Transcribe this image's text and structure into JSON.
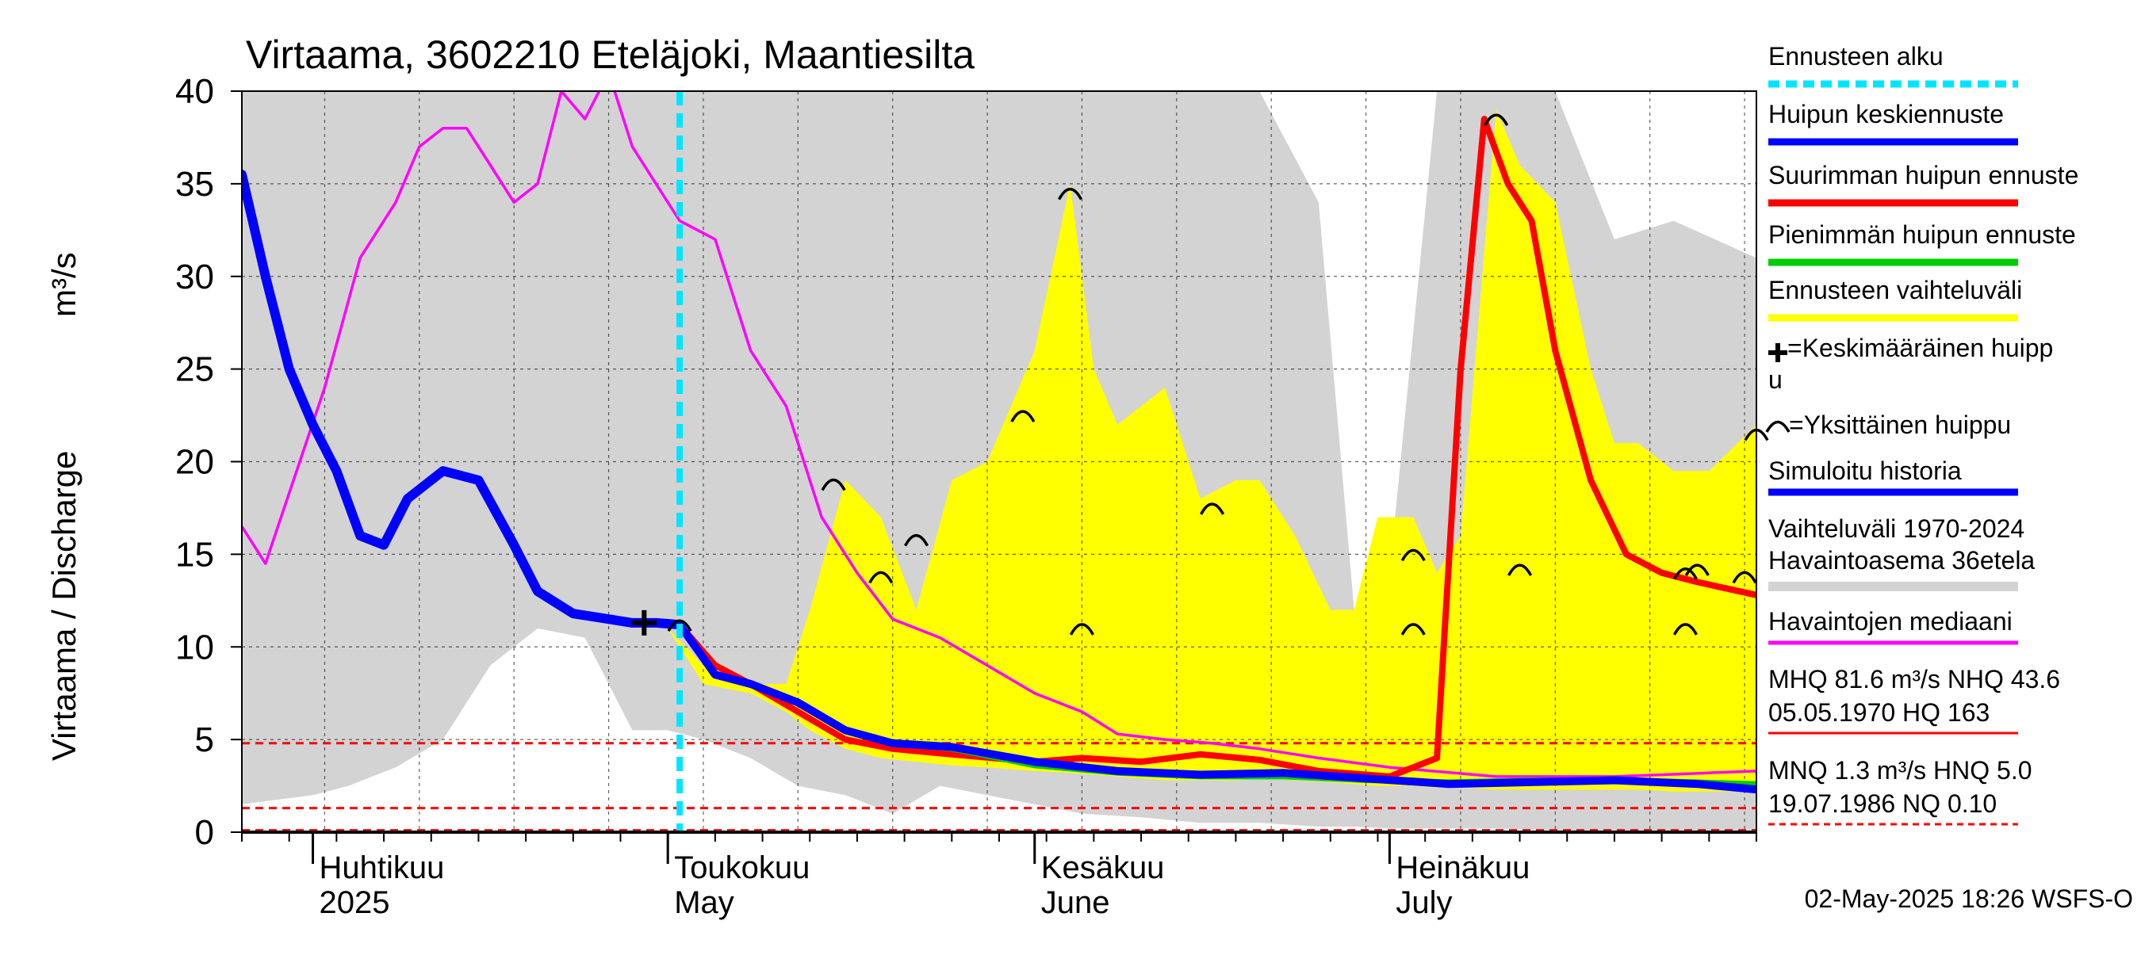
{
  "chart_data": {
    "type": "line",
    "title": "Virtaama, 3602210 Eteläjoki, Maantiesilta",
    "ylabel": "Virtaama / Discharge",
    "yunit": "m³/s",
    "ylim": [
      0,
      40
    ],
    "yticks": [
      "0",
      "5",
      "10",
      "15",
      "20",
      "25",
      "30",
      "35",
      "40"
    ],
    "xlim": [
      "2025-03-26",
      "2025-08-01"
    ],
    "month_labels": [
      {
        "fi": "Huhtikuu",
        "en": "2025",
        "date": "2025-04-01"
      },
      {
        "fi": "Toukokuu",
        "en": "May",
        "date": "2025-05-01"
      },
      {
        "fi": "Kesäkuu",
        "en": "June",
        "date": "2025-06-01"
      },
      {
        "fi": "Heinäkuu",
        "en": "July",
        "date": "2025-07-01"
      }
    ],
    "forecast_start": "2025-05-02",
    "series": [
      {
        "name": "Vaihteluväli 1970-2024 Havaintoasema 36etela",
        "color": "#d3d3d3",
        "kind": "band",
        "x": [
          "2025-03-26",
          "2025-04-01",
          "2025-04-04",
          "2025-04-08",
          "2025-04-12",
          "2025-04-16",
          "2025-04-20",
          "2025-04-24",
          "2025-04-28",
          "2025-05-01",
          "2025-05-04",
          "2025-05-08",
          "2025-05-12",
          "2025-05-16",
          "2025-05-20",
          "2025-05-24",
          "2025-05-28",
          "2025-06-01",
          "2025-06-05",
          "2025-06-10",
          "2025-06-15",
          "2025-06-20",
          "2025-06-25",
          "2025-06-28",
          "2025-07-01",
          "2025-07-05",
          "2025-07-10",
          "2025-07-15",
          "2025-07-20",
          "2025-07-25",
          "2025-08-01"
        ],
        "low": [
          1.5,
          2.0,
          2.5,
          3.5,
          5.0,
          9.0,
          11.0,
          10.5,
          5.5,
          5.5,
          5.0,
          4.0,
          2.5,
          2.0,
          1.0,
          2.5,
          2.0,
          1.5,
          1.0,
          0.8,
          0.5,
          0.5,
          0.3,
          0.3,
          0.2,
          0.2,
          0.2,
          0.1,
          0.1,
          0.1,
          0.1
        ],
        "high": [
          40,
          40,
          40,
          40,
          40,
          40,
          40,
          40,
          40,
          40,
          40,
          40,
          40,
          40,
          40,
          40,
          40,
          40,
          40,
          40,
          40,
          40,
          34,
          12,
          14,
          40,
          40,
          40,
          32,
          33,
          31
        ]
      },
      {
        "name": "Ennusteen vaihteluväli",
        "color": "#ffff00",
        "kind": "band",
        "x": [
          "2025-05-01",
          "2025-05-04",
          "2025-05-08",
          "2025-05-11",
          "2025-05-13",
          "2025-05-16",
          "2025-05-19",
          "2025-05-22",
          "2025-05-25",
          "2025-05-28",
          "2025-06-01",
          "2025-06-04",
          "2025-06-06",
          "2025-06-08",
          "2025-06-10",
          "2025-06-12",
          "2025-06-15",
          "2025-06-18",
          "2025-06-20",
          "2025-06-23",
          "2025-06-26",
          "2025-06-28",
          "2025-06-30",
          "2025-07-03",
          "2025-07-05",
          "2025-07-07",
          "2025-07-10",
          "2025-07-12",
          "2025-07-15",
          "2025-07-18",
          "2025-07-20",
          "2025-07-22",
          "2025-07-25",
          "2025-07-28",
          "2025-08-01"
        ],
        "low": [
          11.0,
          8.0,
          7.5,
          6.5,
          5.5,
          4.5,
          4.0,
          3.8,
          3.6,
          3.5,
          3.3,
          3.2,
          3.1,
          3.0,
          2.9,
          2.8,
          2.8,
          2.8,
          2.9,
          2.8,
          2.7,
          2.6,
          2.5,
          2.5,
          2.4,
          2.4,
          2.3,
          2.3,
          2.3,
          2.3,
          2.3,
          2.3,
          2.2,
          2.2,
          2.2
        ],
        "high": [
          11.0,
          9.0,
          8.0,
          8.0,
          12.0,
          19.0,
          17.0,
          12.0,
          19.0,
          20.0,
          26.0,
          35.0,
          25.0,
          22.0,
          23.0,
          24.0,
          18.0,
          19.0,
          19.0,
          16.0,
          12.0,
          12.0,
          17.0,
          17.0,
          14.0,
          16.0,
          39.0,
          36.0,
          34.0,
          25.0,
          21.0,
          21.0,
          19.5,
          19.5,
          22.0
        ]
      },
      {
        "name": "Havaintojen mediaani",
        "color": "#ff00ff",
        "kind": "line",
        "x": [
          "2025-03-26",
          "2025-03-28",
          "2025-04-02",
          "2025-04-05",
          "2025-04-08",
          "2025-04-10",
          "2025-04-12",
          "2025-04-14",
          "2025-04-16",
          "2025-04-18",
          "2025-04-20",
          "2025-04-22",
          "2025-04-24",
          "2025-04-26",
          "2025-04-28",
          "2025-04-30",
          "2025-05-02",
          "2025-05-05",
          "2025-05-08",
          "2025-05-11",
          "2025-05-14",
          "2025-05-17",
          "2025-05-20",
          "2025-05-24",
          "2025-05-28",
          "2025-06-01",
          "2025-06-05",
          "2025-06-08",
          "2025-06-12",
          "2025-06-16",
          "2025-06-20",
          "2025-06-25",
          "2025-07-01",
          "2025-07-10",
          "2025-07-20",
          "2025-07-28",
          "2025-08-01"
        ],
        "y": [
          16.5,
          14.5,
          24.0,
          31.0,
          34.0,
          37.0,
          38.0,
          38.0,
          36.0,
          34.0,
          35.0,
          40.0,
          38.5,
          41.0,
          37.0,
          35.0,
          33.0,
          32.0,
          26.0,
          23.0,
          17.0,
          14.0,
          11.5,
          10.5,
          9.0,
          7.5,
          6.5,
          5.3,
          5.0,
          4.8,
          4.5,
          4.0,
          3.5,
          3.0,
          3.0,
          3.2,
          3.3
        ]
      },
      {
        "name": "Simuloitu historia",
        "color": "#0000ff",
        "kind": "line",
        "x": [
          "2025-03-26",
          "2025-03-28",
          "2025-03-30",
          "2025-04-01",
          "2025-04-03",
          "2025-04-05",
          "2025-04-07",
          "2025-04-09",
          "2025-04-12",
          "2025-04-15",
          "2025-04-18",
          "2025-04-20",
          "2025-04-23",
          "2025-04-26",
          "2025-04-28",
          "2025-04-30",
          "2025-05-02"
        ],
        "y": [
          35.5,
          30.0,
          25.0,
          22.0,
          19.5,
          16.0,
          15.5,
          18.0,
          19.5,
          19.0,
          15.5,
          13.0,
          11.8,
          11.5,
          11.3,
          11.3,
          11.2
        ]
      },
      {
        "name": "Huipun keskiennuste",
        "color": "#0000ff",
        "kind": "line",
        "x": [
          "2025-05-02",
          "2025-05-05",
          "2025-05-08",
          "2025-05-12",
          "2025-05-16",
          "2025-05-20",
          "2025-05-25",
          "2025-06-01",
          "2025-06-08",
          "2025-06-15",
          "2025-06-22",
          "2025-06-29",
          "2025-07-06",
          "2025-07-13",
          "2025-07-20",
          "2025-07-27",
          "2025-08-01"
        ],
        "y": [
          11.2,
          8.5,
          8.0,
          7.0,
          5.5,
          4.8,
          4.6,
          3.8,
          3.3,
          3.1,
          3.2,
          2.9,
          2.6,
          2.7,
          2.8,
          2.6,
          2.3
        ]
      },
      {
        "name": "Suurimman huipun ennuste",
        "color": "#ff0000",
        "kind": "line",
        "x": [
          "2025-05-02",
          "2025-05-05",
          "2025-05-08",
          "2025-05-12",
          "2025-05-16",
          "2025-05-20",
          "2025-05-25",
          "2025-06-01",
          "2025-06-05",
          "2025-06-10",
          "2025-06-15",
          "2025-06-20",
          "2025-06-25",
          "2025-07-01",
          "2025-07-05",
          "2025-07-07",
          "2025-07-09",
          "2025-07-11",
          "2025-07-13",
          "2025-07-15",
          "2025-07-18",
          "2025-07-21",
          "2025-07-24",
          "2025-07-27",
          "2025-08-01"
        ],
        "y": [
          11.2,
          9.0,
          8.0,
          6.5,
          5.0,
          4.5,
          4.2,
          3.8,
          4.0,
          3.8,
          4.2,
          3.9,
          3.3,
          3.0,
          4.0,
          25.0,
          38.5,
          35.0,
          33.0,
          26.0,
          19.0,
          15.0,
          14.0,
          13.5,
          12.8
        ]
      },
      {
        "name": "Pienimmän huipun ennuste",
        "color": "#00cc00",
        "kind": "line",
        "x": [
          "2025-05-02",
          "2025-05-05",
          "2025-05-08",
          "2025-05-12",
          "2025-05-16",
          "2025-05-20",
          "2025-05-25",
          "2025-06-01",
          "2025-06-08",
          "2025-06-15",
          "2025-06-22",
          "2025-06-29",
          "2025-07-06",
          "2025-07-13",
          "2025-07-20",
          "2025-07-27",
          "2025-08-01"
        ],
        "y": [
          11.2,
          8.5,
          8.0,
          7.0,
          5.5,
          4.8,
          4.5,
          3.6,
          3.2,
          3.0,
          3.0,
          2.8,
          2.7,
          2.8,
          2.8,
          2.7,
          2.6
        ]
      }
    ],
    "thresholds": [
      {
        "value": 4.8,
        "color": "#ff0000"
      },
      {
        "value": 1.3,
        "color": "#ff0000"
      },
      {
        "value": 0.1,
        "color": "#ff0000"
      }
    ],
    "mean_peak": {
      "x": "2025-04-29",
      "y": 11.3
    },
    "single_peaks": [
      {
        "x": "2025-05-02",
        "y": 11.2
      },
      {
        "x": "2025-05-15",
        "y": 18.8
      },
      {
        "x": "2025-05-19",
        "y": 13.8
      },
      {
        "x": "2025-05-22",
        "y": 15.8
      },
      {
        "x": "2025-05-31",
        "y": 22.5
      },
      {
        "x": "2025-06-04",
        "y": 34.5
      },
      {
        "x": "2025-06-05",
        "y": 11.0
      },
      {
        "x": "2025-06-16",
        "y": 17.5
      },
      {
        "x": "2025-07-03",
        "y": 15.0
      },
      {
        "x": "2025-07-03",
        "y": 11.0
      },
      {
        "x": "2025-07-10",
        "y": 38.5
      },
      {
        "x": "2025-07-12",
        "y": 14.2
      },
      {
        "x": "2025-07-26",
        "y": 14.0
      },
      {
        "x": "2025-07-26",
        "y": 11.0
      },
      {
        "x": "2025-07-27",
        "y": 14.2
      },
      {
        "x": "2025-07-31",
        "y": 13.8
      },
      {
        "x": "2025-08-01",
        "y": 21.5
      }
    ]
  },
  "legend": {
    "items": [
      {
        "label": "Ennusteen alku",
        "color": "#00e5ff",
        "style": "dashed"
      },
      {
        "label": "Huipun keskiennuste",
        "color": "#0000ff",
        "style": "solid"
      },
      {
        "label": "Suurimman huipun ennuste",
        "color": "#ff0000",
        "style": "solid"
      },
      {
        "label": "Pienimmän huipun ennuste",
        "color": "#00cc00",
        "style": "solid"
      },
      {
        "label": "Ennusteen vaihteluväli",
        "color": "#ffff00",
        "style": "solid"
      },
      {
        "label": "Simuloitu historia",
        "color": "#0000ff",
        "style": "solid"
      },
      {
        "label": "Havaintojen mediaani",
        "color": "#ff00ff",
        "style": "solid"
      }
    ],
    "mean_peak_line1": "=Keskimääräinen huipp",
    "mean_peak_line2": "u",
    "single_peak_label": "=Yksittäinen huippu",
    "range_line1": "Vaihteluväli 1970-2024",
    "range_line2": " Havaintoasema 36etela",
    "stats": [
      "MHQ 81.6 m³/s NHQ 43.6",
      "05.05.1970 HQ  163",
      "MNQ  1.3 m³/s HNQ  5.0",
      "19.07.1986 NQ 0.10"
    ],
    "stats_line_color": "#ff0000"
  },
  "footer": "02-May-2025 18:26 WSFS-O"
}
